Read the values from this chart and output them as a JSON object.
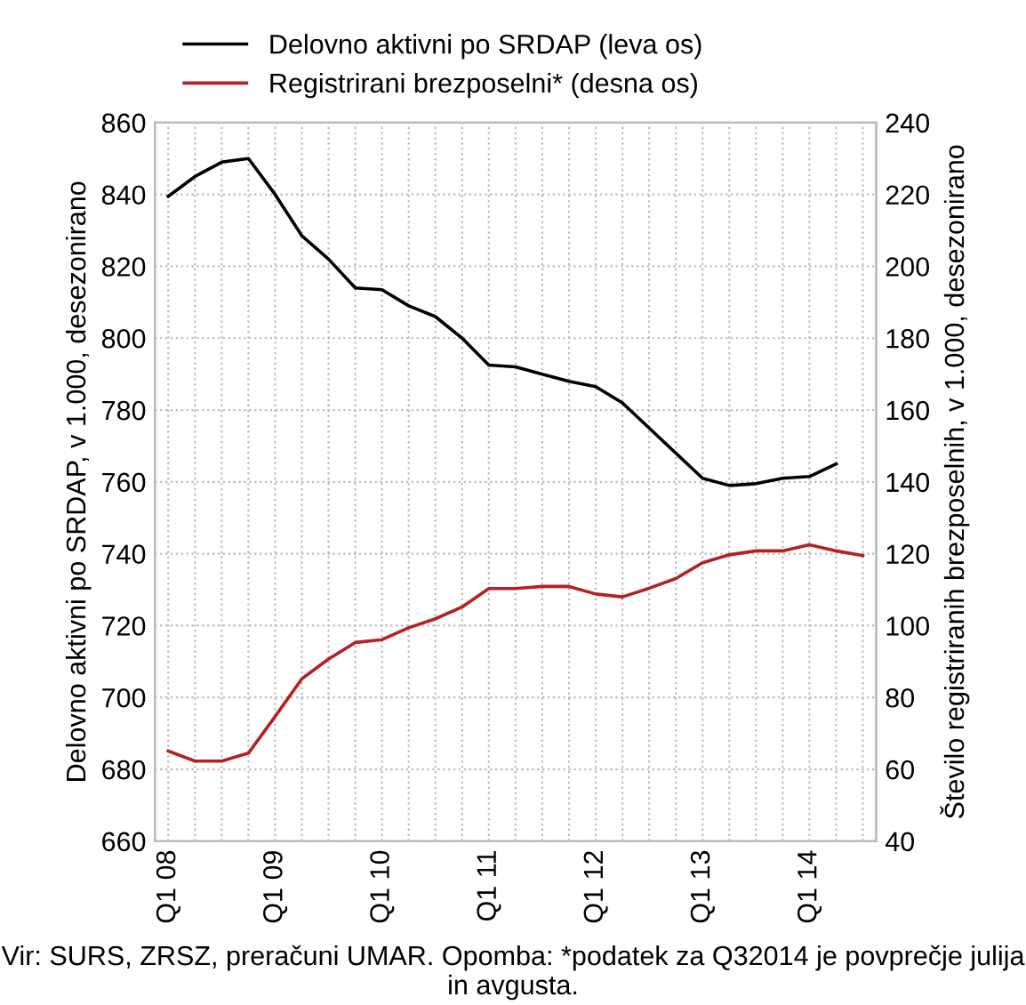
{
  "chart_data": {
    "type": "line",
    "categories": [
      "Q1 08",
      null,
      null,
      null,
      "Q1 09",
      null,
      null,
      null,
      "Q1 10",
      null,
      null,
      null,
      "Q1 11",
      null,
      null,
      null,
      "Q1 12",
      null,
      null,
      null,
      "Q1 13",
      null,
      null,
      null,
      "Q1 14",
      null,
      null
    ],
    "series": [
      {
        "name": "Delovno aktivni po SRDAP (leva os)",
        "color": "#000000",
        "values": [
          839.5,
          845,
          849,
          850,
          840,
          828.5,
          822,
          814,
          813.5,
          809,
          806,
          800,
          792.5,
          792,
          790,
          788,
          786.5,
          782,
          775,
          768,
          761,
          759,
          759.5,
          761,
          761.5,
          765,
          null
        ]
      },
      {
        "name": "Registrirani brezposelni* (desna os)",
        "color": "#b22222",
        "axis": "y2",
        "values": [
          65.1,
          62.3,
          62.3,
          64.5,
          74.7,
          85.2,
          90.7,
          95.3,
          96.1,
          99.4,
          101.9,
          105.2,
          110.3,
          110.3,
          110.9,
          110.9,
          108.8,
          108,
          110.4,
          113.1,
          117.5,
          119.7,
          120.8,
          120.8,
          122.5,
          120.8,
          119.5
        ]
      }
    ],
    "ylabel": "Delovno aktivni po SRDAP, v 1.000, desezonirano",
    "y2label": "Število registriranih brezposelnih, v 1.000, desezonirano",
    "ylim": [
      660,
      860
    ],
    "yticks": [
      660,
      680,
      700,
      720,
      740,
      760,
      780,
      800,
      820,
      840,
      860
    ],
    "y2lim": [
      40,
      240
    ],
    "y2ticks": [
      40,
      60,
      80,
      100,
      120,
      140,
      160,
      180,
      200,
      220,
      240
    ],
    "grid": true,
    "legend": "top",
    "marker": "none",
    "line_style": "solid",
    "annotations": [
      "Vir: SURS, ZRSZ, preračuni UMAR. Opomba: *podatek za Q32014 je povprečje julija in avgusta."
    ]
  }
}
